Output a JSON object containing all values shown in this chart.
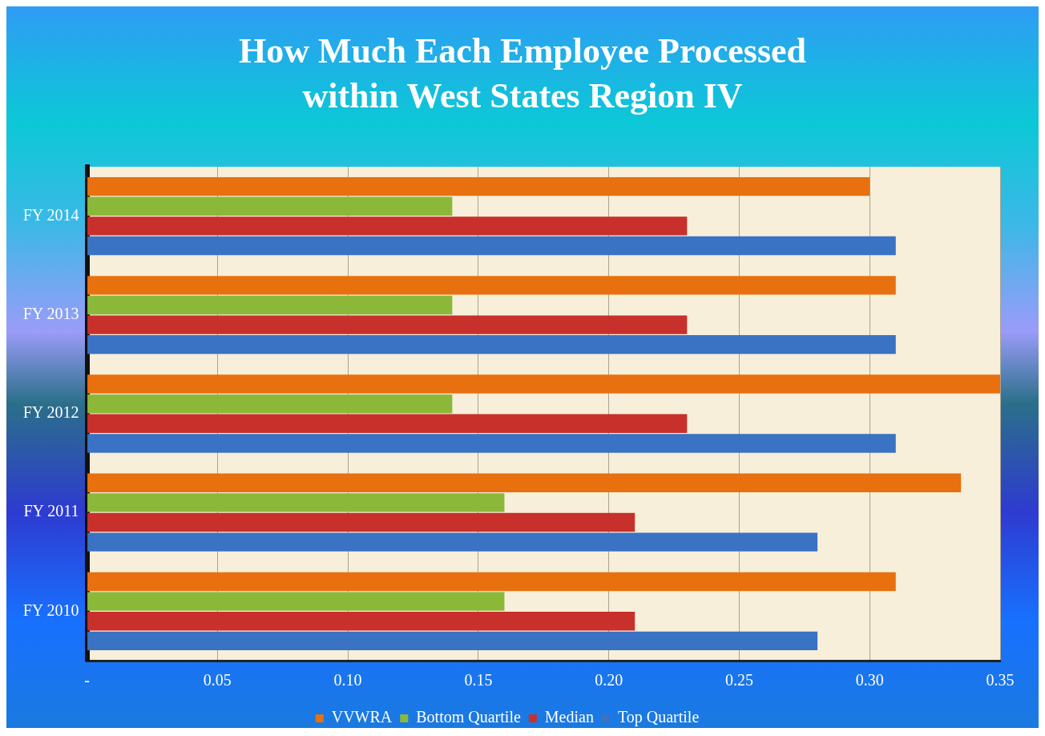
{
  "chart_data": {
    "type": "bar",
    "orientation": "horizontal",
    "title": "How Much Each Employee Processed\nwithin West States Region IV",
    "categories": [
      "FY 2014",
      "FY 2013",
      "FY 2012",
      "FY 2011",
      "FY 2010"
    ],
    "series": [
      {
        "name": "VVWRA",
        "color": "#e8700f",
        "values": [
          0.3,
          0.31,
          0.35,
          0.335,
          0.31
        ]
      },
      {
        "name": "Bottom Quartile",
        "color": "#8cb83a",
        "values": [
          0.14,
          0.14,
          0.14,
          0.16,
          0.16
        ]
      },
      {
        "name": "Median",
        "color": "#c8302c",
        "values": [
          0.23,
          0.23,
          0.23,
          0.21,
          0.21
        ]
      },
      {
        "name": "Top Quartile",
        "color": "#3a72c4",
        "values": [
          0.31,
          0.31,
          0.31,
          0.28,
          0.28
        ]
      }
    ],
    "xlim": [
      0,
      0.35
    ],
    "xticks": [
      {
        "value": 0,
        "label": "-"
      },
      0.05,
      {
        "value": 0.1,
        "label": "0.10"
      },
      0.15,
      {
        "value": 0.2,
        "label": "0.20"
      },
      0.25,
      {
        "value": 0.3,
        "label": "0.30"
      },
      0.35
    ],
    "grid": "x",
    "legend": "bottom"
  }
}
